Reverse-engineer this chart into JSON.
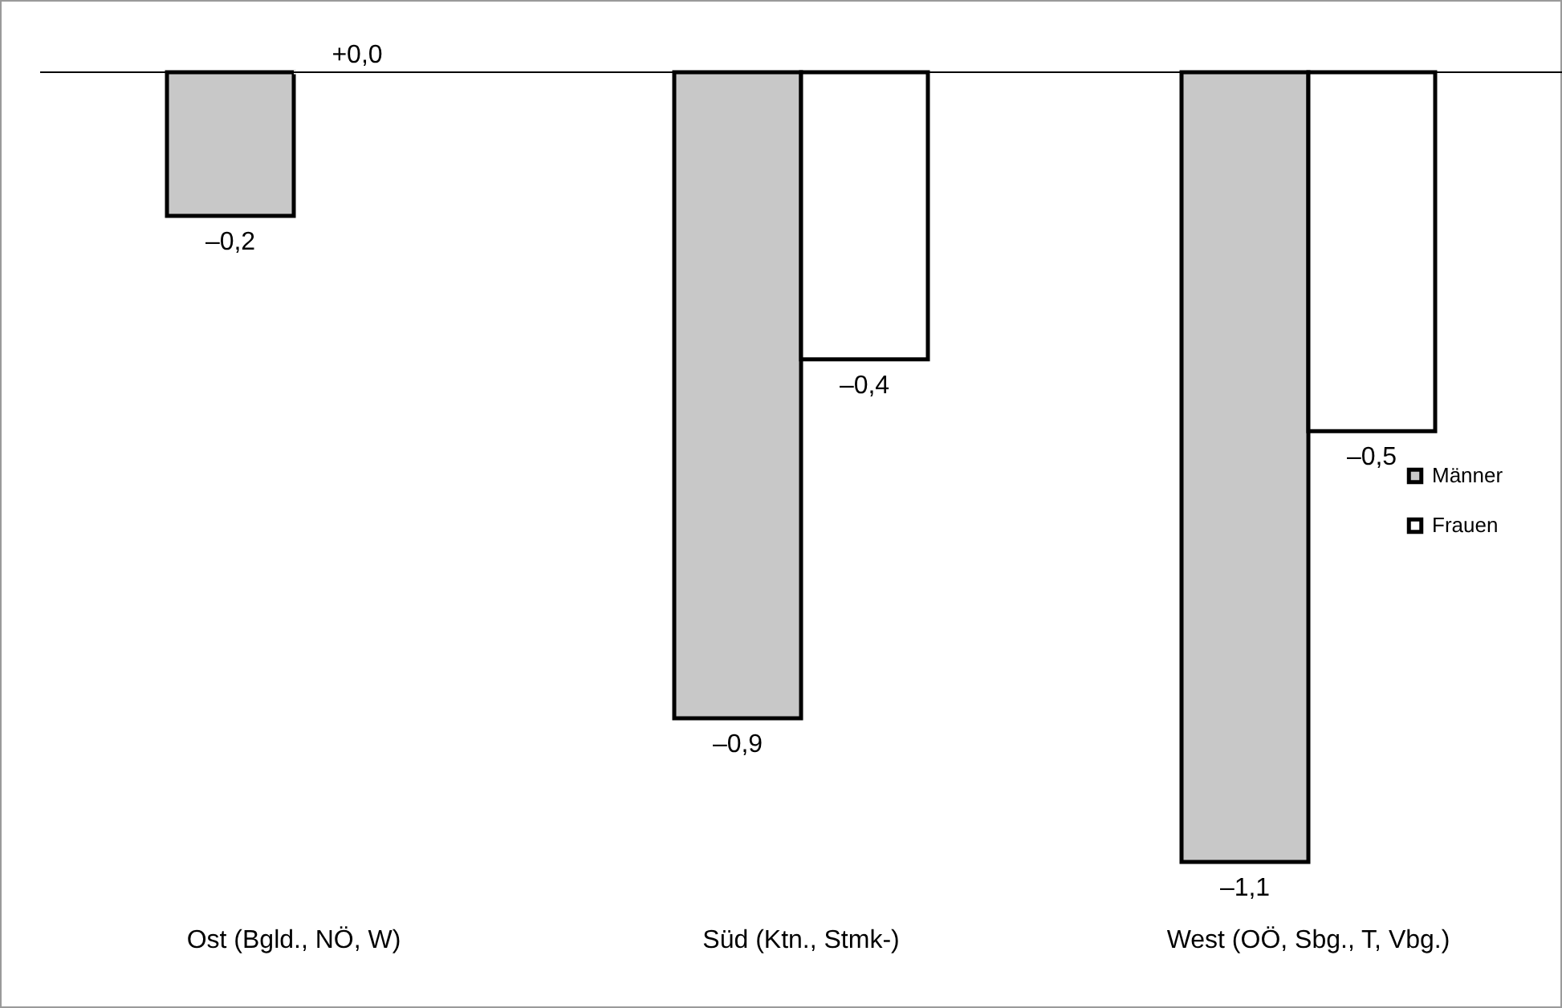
{
  "chart_data": {
    "type": "bar",
    "categories": [
      "Ost (Bgld., NÖ, W)",
      "Süd (Ktn., Stmk-)",
      "West (OÖ, Sbg., T, Vbg.)"
    ],
    "series": [
      {
        "name": "Männer",
        "color": "#c8c8c8",
        "values": [
          -0.2,
          -0.9,
          -1.1
        ],
        "value_labels": [
          "–0,2",
          "–0,9",
          "–1,1"
        ]
      },
      {
        "name": "Frauen",
        "color": "#ffffff",
        "values": [
          0.0,
          -0.4,
          -0.5
        ],
        "value_labels": [
          "+0,0",
          "–0,4",
          "–0,5"
        ]
      }
    ],
    "legend": "right"
  }
}
